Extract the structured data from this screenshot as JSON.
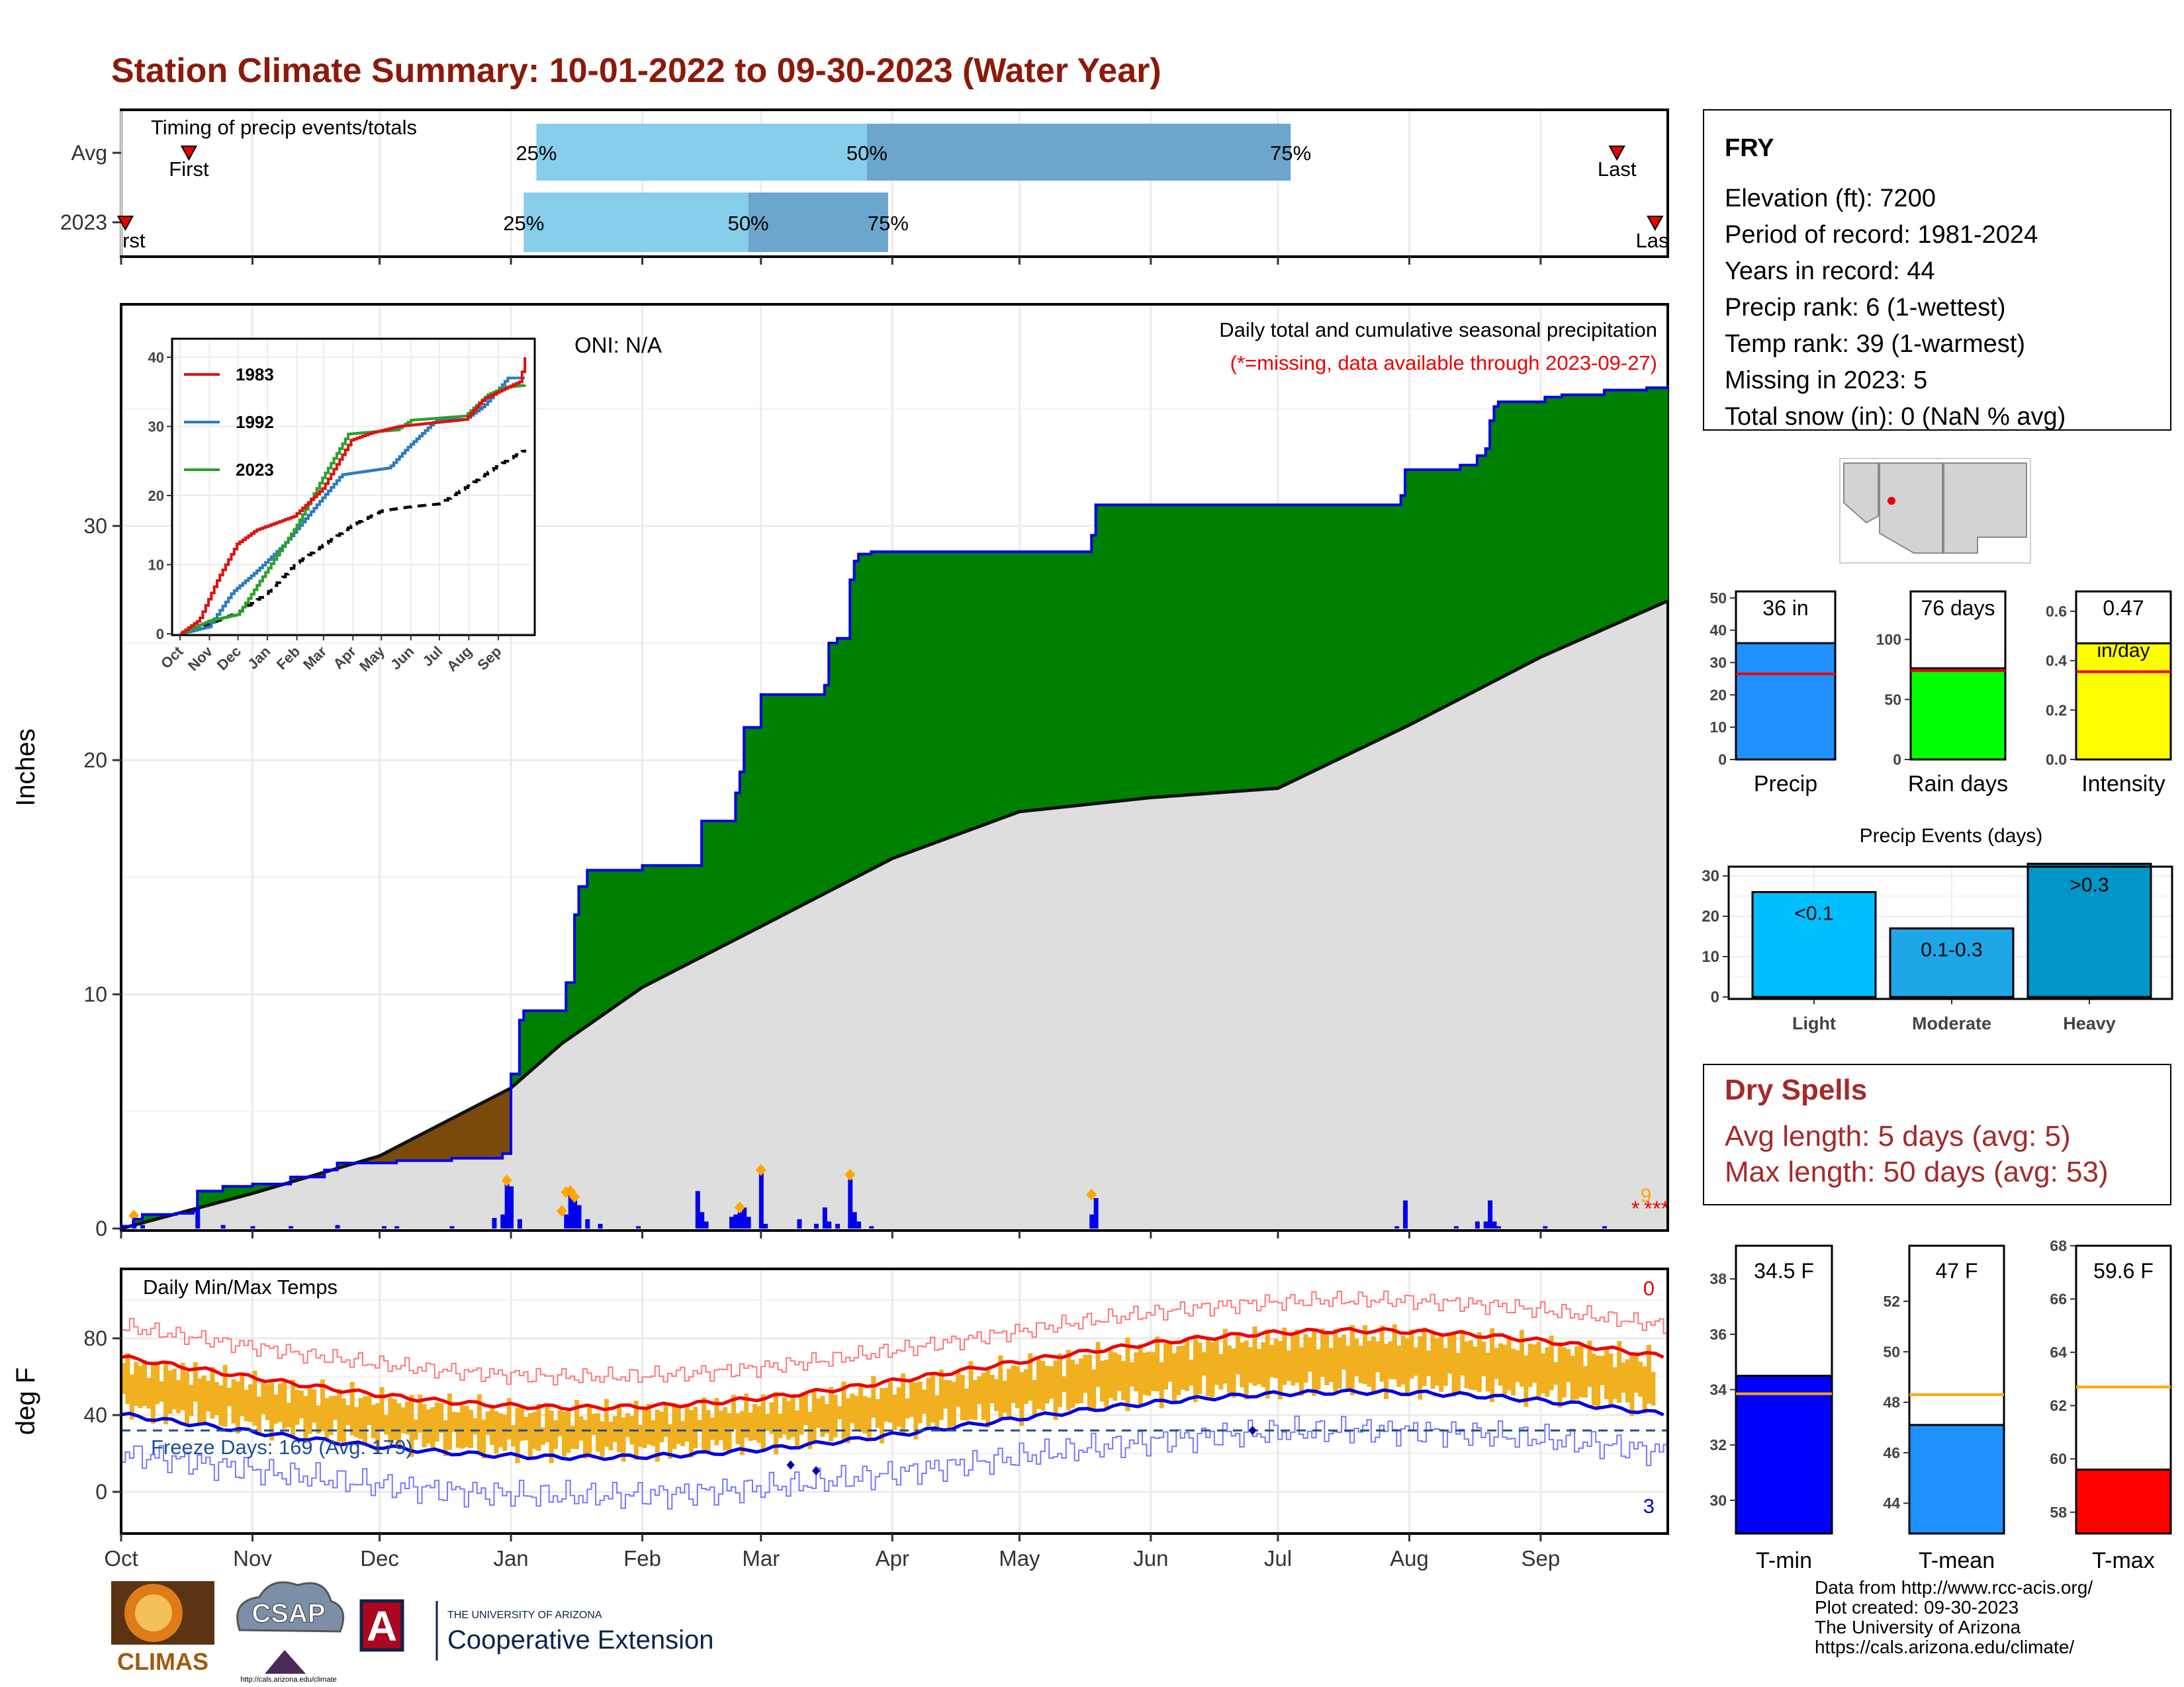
{
  "title": "Station Climate Summary: 10-01-2022 to 09-30-2023 (Water Year)",
  "colors": {
    "title": "#8b1a0a",
    "precip_cum": "#0000ee",
    "surplus": "#008000",
    "deficit": "#7a4a0a",
    "normal_fill": "#dedede",
    "bars": "#0000ee",
    "tmax_line": "#ee0000",
    "tmin_line": "#0000dd",
    "temp_bars": "#f0b020",
    "avg_line": "#ffa020",
    "dry_spell_text": "#a52a2a",
    "light_bar": "#00bfff",
    "moderate_bar": "#1ea7e6",
    "heavy_bar": "#0096c8"
  },
  "timing": {
    "label": "Timing of precip events/totals",
    "rows": [
      "Avg",
      "2023"
    ],
    "avg": {
      "q25_day": 98,
      "q50_day": 176,
      "q75_day": 276,
      "first_day": 16,
      "last_day": 353,
      "q25_label": "25%",
      "q50_label": "50%",
      "q75_label": "75%",
      "first_label": "First",
      "last_label": "Last"
    },
    "y2023": {
      "q25_day": 95,
      "q50_day": 148,
      "q75_day": 181,
      "first_day": 1,
      "last_day": 362,
      "q25_label": "25%",
      "q50_label": "50%",
      "q75_label": "75%",
      "first_label": "First",
      "last_label": "Last"
    }
  },
  "precip": {
    "ylabel": "Inches",
    "oni": "ONI: N/A",
    "subtitle": "Daily total and cumulative seasonal precipitation",
    "missing_note": "(*=missing, data available through 2023-09-27)",
    "missing_marker": "*",
    "missing_count_label": "9",
    "y_ticks": [
      "0",
      "10",
      "20",
      "30"
    ]
  },
  "inset": {
    "y_ticks": [
      "0",
      "10",
      "20",
      "30",
      "40"
    ],
    "x_ticks": [
      "Oct",
      "Nov",
      "Dec",
      "Jan",
      "Feb",
      "Mar",
      "Apr",
      "May",
      "Jun",
      "Jul",
      "Aug",
      "Sep"
    ],
    "legend": [
      {
        "name": "1983",
        "color": "#dd1111"
      },
      {
        "name": "1992",
        "color": "#2b7bbf"
      },
      {
        "name": "2023",
        "color": "#2ca02c"
      }
    ]
  },
  "temps": {
    "title": "Daily Min/Max Temps",
    "ylabel": "deg F",
    "freeze_label": "Freeze Days: 169 (Avg: 179)",
    "count_hot": "0",
    "count_cold": "3",
    "y_ticks": [
      "0",
      "40",
      "80"
    ]
  },
  "months": [
    "Oct",
    "Nov",
    "Dec",
    "Jan",
    "Feb",
    "Mar",
    "Apr",
    "May",
    "Jun",
    "Jul",
    "Aug",
    "Sep"
  ],
  "station": {
    "name": "FRY",
    "lines": [
      "Elevation (ft): 7200",
      "Period of record: 1981-2024",
      "Years in record: 44",
      "Precip rank: 6 (1-wettest)",
      "Temp rank: 39 (1-warmest)",
      "Missing in 2023: 5",
      "Total snow (in): 0 (NaN % avg)"
    ]
  },
  "mini_bars": [
    {
      "label": "Precip",
      "value_label": "36 in",
      "value": 36,
      "avg": 26.5,
      "max": 52,
      "ticks": [
        "0",
        "10",
        "20",
        "30",
        "40",
        "50"
      ],
      "tick_values": [
        0,
        10,
        20,
        30,
        40,
        50
      ],
      "color": "#1e90ff"
    },
    {
      "label": "Rain days",
      "value_label": "76 days",
      "value": 76,
      "avg": 74,
      "max": 140,
      "ticks": [
        "0",
        "50",
        "100"
      ],
      "tick_values": [
        0,
        50,
        100
      ],
      "color": "#00ff00"
    },
    {
      "label": "Intensity",
      "value_label": "0.47",
      "value_label2": "in/day",
      "value": 0.47,
      "avg": 0.355,
      "max": 0.68,
      "ticks": [
        "0.0",
        "0.2",
        "0.4",
        "0.6"
      ],
      "tick_values": [
        0,
        0.2,
        0.4,
        0.6
      ],
      "color": "#ffff00"
    }
  ],
  "events": {
    "title": "Precip Events (days)",
    "categories": [
      "Light",
      "Moderate",
      "Heavy"
    ],
    "bar_labels": [
      "<0.1",
      "0.1-0.3",
      ">0.3"
    ],
    "values": [
      26,
      17,
      33
    ],
    "ticks": [
      "0",
      "10",
      "20",
      "30"
    ]
  },
  "dry_spells": {
    "title": "Dry Spells",
    "avg_length": "Avg length: 5 days (avg: 5)",
    "max_length": "Max length: 50 days (avg: 53)"
  },
  "temp_bars": [
    {
      "label": "T-min",
      "value_label": "34.5 F",
      "value": 34.5,
      "avg": 33.85,
      "min": 28.8,
      "max": 39.2,
      "ticks": [
        "30",
        "32",
        "34",
        "36",
        "38"
      ],
      "tick_values": [
        30,
        32,
        34,
        36,
        38
      ],
      "color": "#0000ff"
    },
    {
      "label": "T-mean",
      "value_label": "47 F",
      "value": 47.1,
      "avg": 48.3,
      "min": 42.8,
      "max": 54.2,
      "ticks": [
        "44",
        "46",
        "48",
        "50",
        "52"
      ],
      "tick_values": [
        44,
        46,
        48,
        50,
        52
      ],
      "color": "#1e90ff"
    },
    {
      "label": "T-max",
      "value_label": "59.6 F",
      "value": 59.6,
      "avg": 62.7,
      "min": 57.2,
      "max": 68,
      "ticks": [
        "58",
        "60",
        "62",
        "64",
        "66",
        "68"
      ],
      "tick_values": [
        58,
        60,
        62,
        64,
        66,
        68
      ],
      "color": "#ff0000"
    }
  ],
  "logos": {
    "climas": "CLIMAS",
    "csap": "CSAP",
    "csap_url": "http://cals.arizona.edu/climate",
    "ua_small": "THE UNIVERSITY OF ARIZONA",
    "ua_big": "Cooperative Extension",
    "ua_letter": "A"
  },
  "footer": [
    "Data from http://www.rcc-acis.org/",
    "Plot created: 09-30-2023",
    "The University of Arizona",
    "https://cals.arizona.edu/climate/"
  ]
}
